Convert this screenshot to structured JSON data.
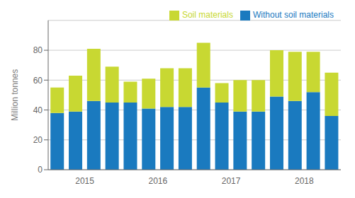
{
  "chart_data": {
    "type": "bar",
    "stacked": true,
    "categories": [
      null,
      "2015",
      null,
      null,
      null,
      "2016",
      null,
      null,
      null,
      "2017",
      null,
      null,
      null,
      "2018",
      null,
      null
    ],
    "series": [
      {
        "name": "Without soil materials",
        "color": "#1a7abf",
        "values": [
          38,
          39,
          46,
          45,
          45,
          41,
          42,
          42,
          55,
          45,
          39,
          39,
          49,
          46,
          52,
          36
        ]
      },
      {
        "name": "Soil materials",
        "color": "#c8d832",
        "values": [
          17,
          24,
          35,
          24,
          14,
          20,
          26,
          26,
          30,
          13,
          21,
          21,
          31,
          33,
          27,
          29
        ]
      }
    ],
    "ylabel": "Million tonnes",
    "ylim": [
      0,
      100
    ],
    "yticks": [
      0,
      20,
      40,
      60,
      80
    ],
    "grid": true,
    "legend": "upper right"
  }
}
